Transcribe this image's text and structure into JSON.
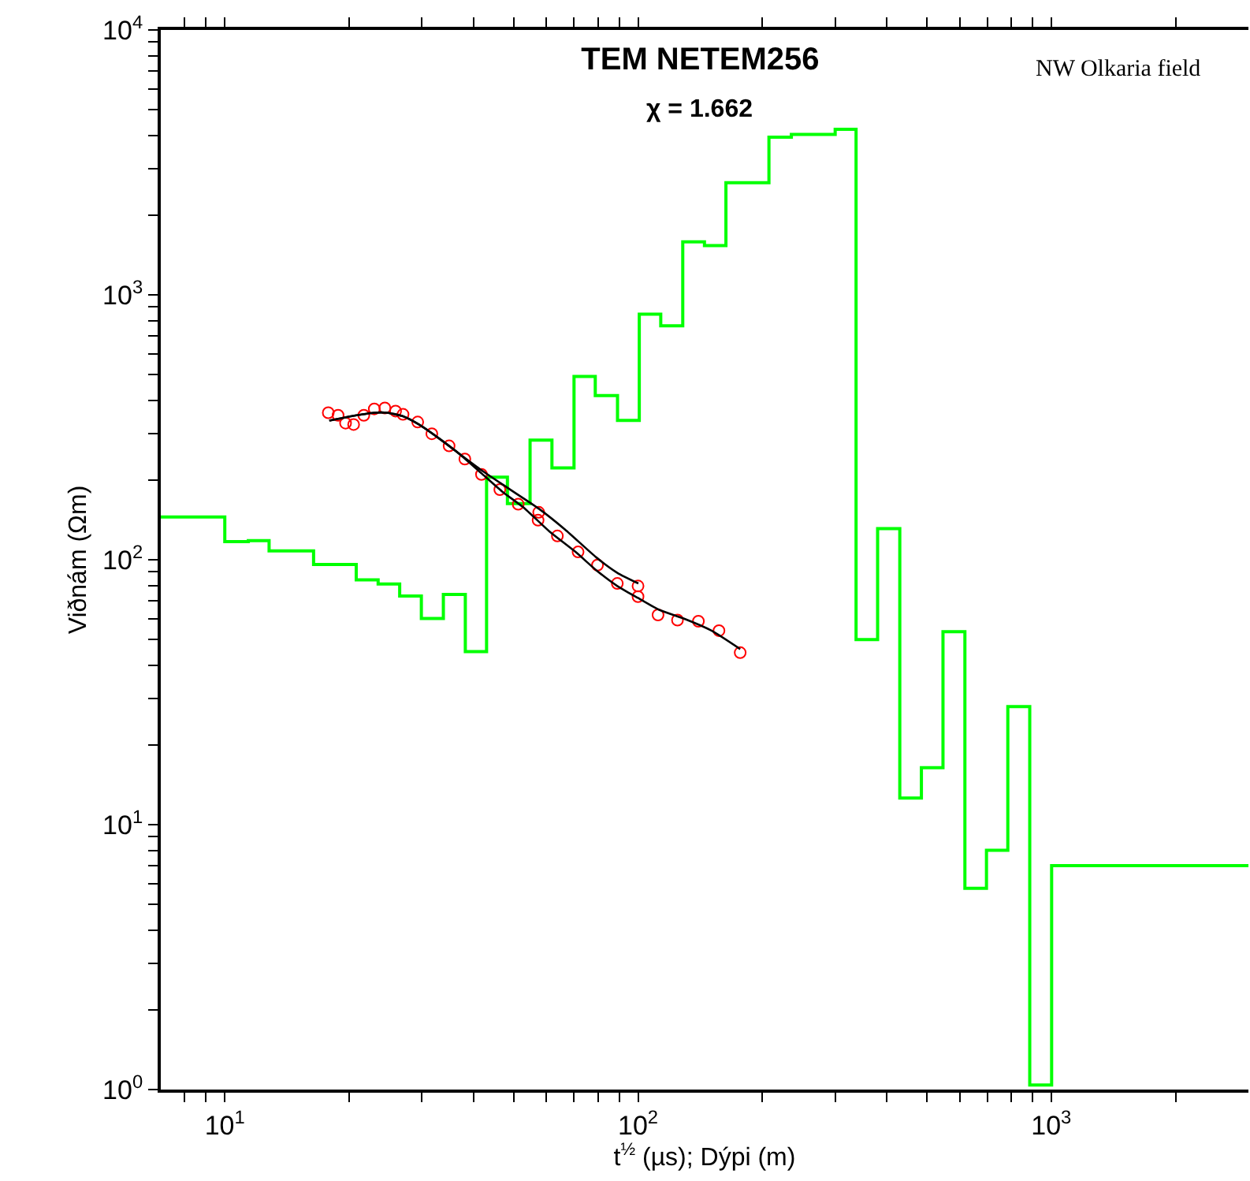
{
  "chart_data": {
    "type": "line",
    "title": "TEM NETEM256",
    "subtitle": "χ = 1.662",
    "xlabel": "t$^{½}$ (µs); Dýpi (m)",
    "ylabel": "Viðnám (Ωm)",
    "annotations": [
      "NW Olkaria field"
    ],
    "log": "xy",
    "xlim": [
      7,
      3000
    ],
    "ylim": [
      1,
      10000
    ],
    "xticks": [
      {
        "value": 8,
        "label": null
      },
      {
        "value": 9,
        "label": null
      },
      {
        "value": 10,
        "label": "10$^{1}$"
      },
      {
        "value": 20,
        "label": null
      },
      {
        "value": 30,
        "label": null
      },
      {
        "value": 40,
        "label": null
      },
      {
        "value": 50,
        "label": null
      },
      {
        "value": 60,
        "label": null
      },
      {
        "value": 70,
        "label": null
      },
      {
        "value": 80,
        "label": null
      },
      {
        "value": 90,
        "label": null
      },
      {
        "value": 100,
        "label": "10$^{2}$"
      },
      {
        "value": 200,
        "label": null
      },
      {
        "value": 300,
        "label": null
      },
      {
        "value": 400,
        "label": null
      },
      {
        "value": 500,
        "label": null
      },
      {
        "value": 600,
        "label": null
      },
      {
        "value": 700,
        "label": null
      },
      {
        "value": 800,
        "label": null
      },
      {
        "value": 900,
        "label": null
      },
      {
        "value": 1000,
        "label": "10$^{3}$"
      },
      {
        "value": 2000,
        "label": null
      }
    ],
    "yticks": [
      {
        "value": 1,
        "label": "10$^{0}$"
      },
      {
        "value": 2,
        "label": null
      },
      {
        "value": 3,
        "label": null
      },
      {
        "value": 4,
        "label": null
      },
      {
        "value": 5,
        "label": null
      },
      {
        "value": 6,
        "label": null
      },
      {
        "value": 7,
        "label": null
      },
      {
        "value": 8,
        "label": null
      },
      {
        "value": 9,
        "label": null
      },
      {
        "value": 10,
        "label": "10$^{1}$"
      },
      {
        "value": 20,
        "label": null
      },
      {
        "value": 30,
        "label": null
      },
      {
        "value": 40,
        "label": null
      },
      {
        "value": 50,
        "label": null
      },
      {
        "value": 60,
        "label": null
      },
      {
        "value": 70,
        "label": null
      },
      {
        "value": 80,
        "label": null
      },
      {
        "value": 90,
        "label": null
      },
      {
        "value": 100,
        "label": "10$^{2}$"
      },
      {
        "value": 200,
        "label": null
      },
      {
        "value": 300,
        "label": null
      },
      {
        "value": 400,
        "label": null
      },
      {
        "value": 500,
        "label": null
      },
      {
        "value": 600,
        "label": null
      },
      {
        "value": 700,
        "label": null
      },
      {
        "value": 800,
        "label": null
      },
      {
        "value": 900,
        "label": null
      },
      {
        "value": 1000,
        "label": "10$^{3}$"
      },
      {
        "value": 2000,
        "label": null
      },
      {
        "value": 3000,
        "label": null
      },
      {
        "value": 4000,
        "label": null
      },
      {
        "value": 5000,
        "label": null
      },
      {
        "value": 6000,
        "label": null
      },
      {
        "value": 7000,
        "label": null
      },
      {
        "value": 8000,
        "label": null
      },
      {
        "value": 9000,
        "label": null
      },
      {
        "value": 10000,
        "label": "10$^{4}$"
      }
    ],
    "series": [
      {
        "type": "step",
        "color": "#00ff00",
        "x": [
          7,
          10,
          11.4,
          12.8,
          16.4,
          20.8,
          23.5,
          26.5,
          29.9,
          33.8,
          38.2,
          43,
          48.3,
          54.8,
          61.9,
          70,
          78.8,
          89.2,
          100.7,
          113.5,
          128.3,
          144.8,
          163.2,
          207.4,
          235,
          300,
          337,
          380,
          430,
          485,
          547,
          618,
          697,
          785,
          887,
          1002,
          3000
        ],
        "values": [
          145,
          117,
          118,
          108,
          96,
          84,
          81,
          73,
          60,
          74,
          45,
          205,
          163,
          283,
          222,
          492,
          417,
          336,
          845,
          764,
          1585,
          1535,
          2650,
          3940,
          4030,
          4220,
          50,
          131,
          12.6,
          16.4,
          53.5,
          5.75,
          8,
          27.9,
          1.04,
          7,
          7
        ]
      },
      {
        "type": "scatter",
        "marker": "circle",
        "color": "#ff0000",
        "x": [
          17.8,
          18.8,
          19.6,
          20.5,
          21.7,
          23,
          24.4,
          25.9,
          27,
          29.3,
          31.7,
          34.9,
          38.1,
          41.8,
          46.3,
          51.3,
          57.5,
          57.3,
          63.8,
          71.6,
          79.8,
          89.1,
          100,
          100,
          111.8,
          124.6,
          140,
          157,
          176.7
        ],
        "values": [
          359,
          351,
          328,
          324,
          351,
          371,
          374,
          364,
          354,
          331,
          299,
          269,
          240,
          210,
          184,
          162,
          151,
          141,
          123,
          107,
          95.5,
          81.4,
          79.6,
          72.6,
          61.9,
          59.2,
          58.6,
          54,
          44.6
        ]
      },
      {
        "color": "#000000",
        "x": [
          17.9,
          20.2,
          23,
          24.7,
          27,
          29.5,
          33.1,
          37.2,
          41.8,
          46.9,
          52.7,
          61,
          70.6,
          79.3,
          89.1,
          100.2,
          112.5,
          130,
          150.6,
          176.7
        ],
        "values": [
          335,
          348,
          359,
          359,
          348,
          324,
          286,
          249,
          212,
          181,
          158,
          128,
          107,
          91.2,
          79.6,
          71.6,
          64.7,
          59.7,
          54,
          46
        ]
      },
      {
        "color": "#000000",
        "x": [
          17.9,
          20.2,
          23,
          24.7,
          27,
          29.5,
          33.1,
          37.2,
          41.8,
          48.3,
          57.5,
          66.6,
          79.3,
          89.1,
          100.2
        ],
        "values": [
          335,
          348,
          359,
          359,
          348,
          324,
          286,
          249,
          217.6,
          187,
          156,
          130,
          102,
          89.3,
          81.4
        ]
      }
    ]
  }
}
